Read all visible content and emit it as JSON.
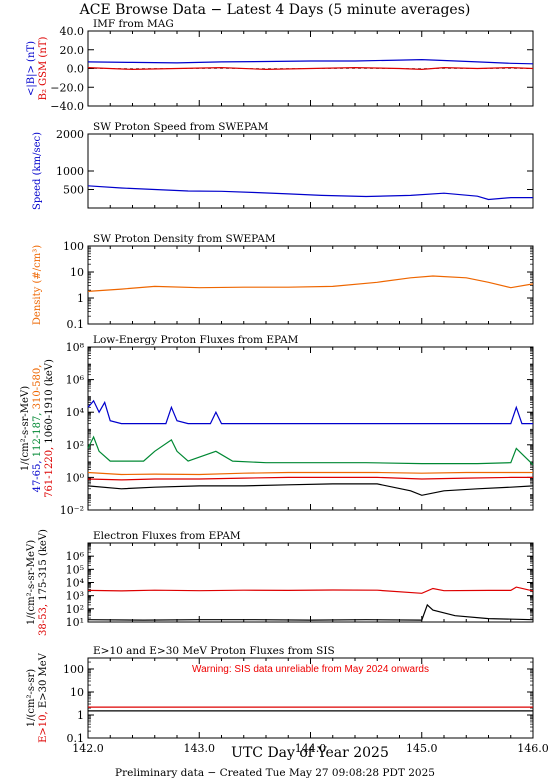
{
  "title": "ACE Browse Data − Latest 4 Days (5 minute averages)",
  "footer": "Preliminary data − Created Tue May 27 09:08:28 PDT 2025",
  "x_axis": {
    "label": "UTC Day of Year 2025",
    "range": [
      142.0,
      146.0
    ],
    "ticks": [
      {
        "v": 142.0,
        "label": "142.0"
      },
      {
        "v": 143.0,
        "label": "143.0"
      },
      {
        "v": 144.0,
        "label": "144.0"
      },
      {
        "v": 145.0,
        "label": "145.0"
      },
      {
        "v": 146.0,
        "label": "146.0"
      }
    ]
  },
  "colors": {
    "blue": "#0000cc",
    "red": "#dd0000",
    "orange": "#ee6600",
    "green": "#008833",
    "black": "#000000",
    "warning": "#ee0000"
  },
  "chart_data": [
    {
      "type": "line",
      "title": "IMF from MAG",
      "scale": "linear",
      "ylim": [
        -40,
        40
      ],
      "yticks": [
        {
          "v": 40,
          "label": "40.0"
        },
        {
          "v": 20,
          "label": "20.0"
        },
        {
          "v": 0,
          "label": "0.0"
        },
        {
          "v": -20,
          "label": "−20.0"
        },
        {
          "v": -40,
          "label": "−40.0"
        }
      ],
      "ylabel_parts": [
        {
          "text": "<|B|> (nT)",
          "color": "blue"
        },
        {
          "text": "B₂ GSM (nT)",
          "color": "red"
        }
      ],
      "series": [
        {
          "color": "blue",
          "x": [
            142.0,
            142.4,
            142.8,
            143.2,
            143.6,
            144.0,
            144.4,
            144.8,
            145.0,
            145.2,
            145.5,
            145.8,
            146.0
          ],
          "y": [
            7,
            6.5,
            6,
            7,
            7.5,
            8,
            8,
            9,
            9.5,
            8.5,
            7,
            5.5,
            5
          ]
        },
        {
          "color": "red",
          "x": [
            142.0,
            142.4,
            142.8,
            143.2,
            143.6,
            144.0,
            144.4,
            144.8,
            145.0,
            145.2,
            145.5,
            145.8,
            146.0
          ],
          "y": [
            1,
            -1,
            0,
            1,
            -1,
            0,
            1,
            0,
            -1,
            1,
            0,
            1,
            0
          ]
        }
      ]
    },
    {
      "type": "line",
      "title": "SW Proton Speed from SWEPAM",
      "scale": "linear",
      "ylim": [
        0,
        2000
      ],
      "yticks": [
        {
          "v": 2000,
          "label": "2000"
        },
        {
          "v": 1000,
          "label": "1000"
        },
        {
          "v": 500,
          "label": "500"
        }
      ],
      "ylabel_parts": [
        {
          "text": "Speed (km/sec)",
          "color": "blue"
        }
      ],
      "series": [
        {
          "color": "blue",
          "x": [
            142.0,
            142.3,
            142.6,
            142.9,
            143.2,
            143.5,
            143.8,
            144.1,
            144.5,
            144.9,
            145.2,
            145.5,
            145.6,
            145.8,
            146.0
          ],
          "y": [
            600,
            540,
            500,
            460,
            450,
            420,
            380,
            340,
            310,
            340,
            400,
            320,
            230,
            280,
            280
          ]
        }
      ]
    },
    {
      "type": "line",
      "title": "SW Proton Density from SWEPAM",
      "scale": "log",
      "ylim": [
        0.1,
        100
      ],
      "yticks": [
        {
          "v": 100,
          "label": "100"
        },
        {
          "v": 10,
          "label": "10"
        },
        {
          "v": 1,
          "label": "1"
        },
        {
          "v": 0.1,
          "label": "0.1"
        }
      ],
      "ylabel_parts": [
        {
          "text": "Density (#/cm³)",
          "color": "orange"
        }
      ],
      "series": [
        {
          "color": "orange",
          "x": [
            142.0,
            142.3,
            142.6,
            143.0,
            143.4,
            143.8,
            144.2,
            144.6,
            144.9,
            145.1,
            145.4,
            145.6,
            145.8,
            146.0
          ],
          "y": [
            1.8,
            2.2,
            2.8,
            2.5,
            2.6,
            2.6,
            2.8,
            4,
            6,
            7,
            6,
            4,
            2.5,
            3.5
          ]
        }
      ]
    },
    {
      "type": "line",
      "title": "Low-Energy Proton Fluxes from EPAM",
      "scale": "log",
      "ylim": [
        0.01,
        100000000
      ],
      "yticks": [
        {
          "v": 100000000,
          "label": "10⁸"
        },
        {
          "v": 1000000,
          "label": "10⁶"
        },
        {
          "v": 10000,
          "label": "10⁴"
        },
        {
          "v": 100,
          "label": "10²"
        },
        {
          "v": 1,
          "label": "10⁰"
        },
        {
          "v": 0.01,
          "label": "10⁻²"
        }
      ],
      "ylabel_parts": [
        {
          "text": "1/(cm²-s-sr-MeV)",
          "color": "black"
        },
        {
          "text": "47-65,",
          "color": "blue"
        },
        {
          "text": "112-187,",
          "color": "green"
        },
        {
          "text": "310-580,",
          "color": "orange"
        },
        {
          "text": "761-1220,",
          "color": "red"
        },
        {
          "text": "1060-1910 (keV)",
          "color": "black"
        }
      ],
      "series": [
        {
          "color": "blue",
          "x": [
            142.0,
            142.05,
            142.1,
            142.15,
            142.2,
            142.3,
            142.7,
            142.75,
            142.8,
            142.9,
            143.1,
            143.15,
            143.2,
            143.4,
            145.1,
            145.8,
            145.85,
            145.9,
            146.0
          ],
          "y": [
            20000,
            50000,
            10000,
            40000,
            3000,
            2000,
            2000,
            20000,
            3000,
            2000,
            2000,
            10000,
            2000,
            2000,
            2000,
            2000,
            20000,
            2000,
            2000
          ]
        },
        {
          "color": "green",
          "x": [
            142.0,
            142.05,
            142.1,
            142.2,
            142.5,
            142.6,
            142.75,
            142.8,
            142.9,
            143.15,
            143.3,
            143.6,
            144.0,
            144.5,
            145.0,
            145.5,
            145.8,
            145.85,
            146.0
          ],
          "y": [
            60,
            300,
            40,
            10,
            10,
            40,
            200,
            40,
            10,
            40,
            10,
            8,
            8,
            8,
            7,
            7,
            8,
            60,
            6
          ]
        },
        {
          "color": "orange",
          "x": [
            142.0,
            142.3,
            142.6,
            143.0,
            143.4,
            143.8,
            144.2,
            144.6,
            145.0,
            145.4,
            145.8,
            146.0
          ],
          "y": [
            2,
            1.5,
            1.6,
            1.5,
            1.8,
            2,
            2,
            2,
            1.8,
            2,
            2,
            2
          ]
        },
        {
          "color": "red",
          "x": [
            142.0,
            142.3,
            142.6,
            143.0,
            143.4,
            143.8,
            144.2,
            144.6,
            145.0,
            145.4,
            145.8,
            146.0
          ],
          "y": [
            0.8,
            0.7,
            0.8,
            0.8,
            0.9,
            1,
            1,
            1,
            0.8,
            0.9,
            1,
            1
          ]
        },
        {
          "color": "black",
          "x": [
            142.0,
            142.3,
            142.6,
            143.0,
            143.4,
            143.8,
            144.2,
            144.6,
            144.9,
            145.0,
            145.2,
            145.5,
            145.8,
            146.0
          ],
          "y": [
            0.3,
            0.2,
            0.25,
            0.3,
            0.3,
            0.35,
            0.4,
            0.4,
            0.15,
            0.08,
            0.15,
            0.2,
            0.25,
            0.3
          ]
        }
      ]
    },
    {
      "type": "line",
      "title": "Electron Fluxes from EPAM",
      "scale": "log",
      "ylim": [
        10,
        10000000
      ],
      "yticks": [
        {
          "v": 1000000,
          "label": "10⁶"
        },
        {
          "v": 100000,
          "label": "10⁵"
        },
        {
          "v": 10000,
          "label": "10⁴"
        },
        {
          "v": 1000,
          "label": "10³"
        },
        {
          "v": 100,
          "label": "10²"
        },
        {
          "v": 10,
          "label": "10¹"
        }
      ],
      "ylabel_parts": [
        {
          "text": "1/(cm²-s-sr-MeV)",
          "color": "black"
        },
        {
          "text": "38-53,",
          "color": "red"
        },
        {
          "text": "175-315 (keV)",
          "color": "black"
        }
      ],
      "series": [
        {
          "color": "red",
          "x": [
            142.0,
            142.3,
            142.6,
            143.0,
            143.4,
            143.8,
            144.2,
            144.6,
            145.0,
            145.1,
            145.2,
            145.6,
            145.8,
            145.85,
            146.0
          ],
          "y": [
            2500,
            2300,
            2600,
            2400,
            2600,
            2500,
            2700,
            2600,
            1500,
            3500,
            2400,
            2500,
            2500,
            4500,
            2300
          ]
        },
        {
          "color": "black",
          "x": [
            142.0,
            142.5,
            143.0,
            143.5,
            144.0,
            144.5,
            145.0,
            145.05,
            145.1,
            145.3,
            145.6,
            146.0
          ],
          "y": [
            15,
            14,
            15,
            15,
            14,
            15,
            14,
            200,
            80,
            30,
            18,
            15
          ]
        }
      ]
    },
    {
      "type": "line",
      "title": "E>10 and E>30 MeV Proton Fluxes from SIS",
      "annotation": "Warning: SIS data unreliable from May 2024 onwards",
      "scale": "log",
      "ylim": [
        0.1,
        300
      ],
      "yticks": [
        {
          "v": 100,
          "label": "100"
        },
        {
          "v": 10,
          "label": "10"
        },
        {
          "v": 1,
          "label": "1"
        },
        {
          "v": 0.1,
          "label": "0.1"
        }
      ],
      "ylabel_parts": [
        {
          "text": "1/(cm²-s-sr)",
          "color": "black"
        },
        {
          "text": "E>10,",
          "color": "red"
        },
        {
          "text": "E>30 MeV",
          "color": "black"
        }
      ],
      "series": [
        {
          "color": "red",
          "x": [
            142.0,
            142.5,
            143.0,
            143.5,
            144.0,
            144.5,
            145.0,
            145.5,
            146.0
          ],
          "y": [
            2.2,
            2.2,
            2.2,
            2.2,
            2.2,
            2.2,
            2.2,
            2.2,
            2.2
          ]
        },
        {
          "color": "black",
          "x": [
            142.0,
            142.5,
            143.0,
            143.5,
            144.0,
            144.5,
            145.0,
            145.5,
            146.0
          ],
          "y": [
            1.5,
            1.5,
            1.5,
            1.5,
            1.5,
            1.5,
            1.5,
            1.5,
            1.5
          ]
        }
      ]
    }
  ]
}
